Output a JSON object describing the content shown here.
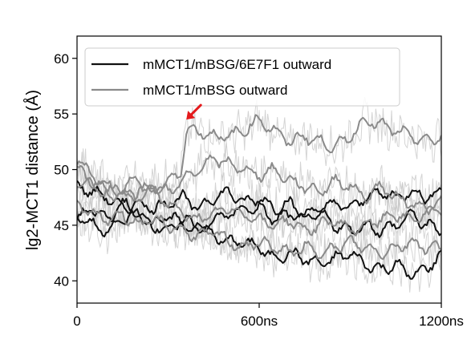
{
  "chart_data": {
    "type": "line",
    "title": "",
    "xlabel": "",
    "ylabel": "lg2-MCT1 distance (Å)",
    "xlim": [
      0,
      1200
    ],
    "ylim": [
      38,
      62
    ],
    "grid": false,
    "legend_position": "top-left",
    "x_ticks": [
      {
        "value": 0,
        "label": "0"
      },
      {
        "value": 600,
        "label": "600ns"
      },
      {
        "value": 1200,
        "label": "1200ns"
      }
    ],
    "y_ticks": [
      {
        "value": 40,
        "label": "40"
      },
      {
        "value": 45,
        "label": "45"
      },
      {
        "value": 50,
        "label": "50"
      },
      {
        "value": 55,
        "label": "55"
      },
      {
        "value": 60,
        "label": "60"
      }
    ],
    "colors": {
      "mMCT1/mBSG/6E7F1 outward": "#111111",
      "mMCT1/mBSG outward": "#8a8a8a",
      "raw_fluctuation": "#c6c6c6",
      "annotation_arrow": "#e41a1c"
    },
    "series": [
      {
        "name": "mMCT1/mBSG/6E7F1 outward",
        "color": "#111111",
        "x": [
          0,
          50,
          100,
          150,
          200,
          250,
          300,
          350,
          400,
          450,
          500,
          550,
          600,
          650,
          700,
          750,
          800,
          850,
          900,
          950,
          1000,
          1050,
          1100,
          1150,
          1200
        ],
        "y": [
          45.5,
          46.5,
          45.5,
          47,
          46,
          45,
          44.5,
          45.5,
          45,
          44,
          43.5,
          43.5,
          43,
          42,
          42.5,
          42,
          41.5,
          42,
          42.5,
          41.5,
          41,
          41.5,
          40.5,
          41,
          42.5
        ]
      },
      {
        "name": "",
        "color": "#111111",
        "x": [
          0,
          50,
          100,
          150,
          200,
          250,
          300,
          350,
          400,
          450,
          500,
          550,
          600,
          650,
          700,
          750,
          800,
          850,
          900,
          950,
          1000,
          1050,
          1100,
          1150,
          1200
        ],
        "y": [
          48.5,
          48,
          47.5,
          46.5,
          47,
          46.5,
          47,
          47.5,
          46.5,
          47.5,
          48,
          47,
          47.5,
          46.5,
          47,
          46,
          46.5,
          47,
          46.5,
          47.5,
          48,
          47.5,
          48,
          47.5,
          48
        ]
      },
      {
        "name": "",
        "color": "#111111",
        "x": [
          0,
          50,
          100,
          150,
          200,
          250,
          300,
          350,
          400,
          450,
          500,
          550,
          600,
          650,
          700,
          750,
          800,
          850,
          900,
          950,
          1000,
          1050,
          1100,
          1150,
          1200
        ],
        "y": [
          46,
          45,
          44.5,
          45.5,
          46,
          45,
          46,
          45,
          44.5,
          45.5,
          46,
          46.5,
          46.5,
          45.5,
          46,
          45.5,
          46,
          45,
          44.5,
          45,
          44.5,
          45,
          46,
          45,
          44.5
        ]
      },
      {
        "name": "mMCT1/mBSG outward",
        "color": "#8a8a8a",
        "x": [
          0,
          50,
          100,
          150,
          200,
          250,
          300,
          340,
          360,
          400,
          450,
          500,
          550,
          600,
          650,
          700,
          750,
          800,
          850,
          900,
          950,
          1000,
          1050,
          1100,
          1150,
          1200
        ],
        "y": [
          51,
          49.5,
          48.5,
          48,
          47.5,
          48,
          49,
          49.5,
          53.5,
          53.5,
          53,
          53,
          53.5,
          54.5,
          53.5,
          52.5,
          53,
          52.5,
          52,
          53,
          54.5,
          54,
          53.5,
          53,
          52.5,
          53
        ]
      },
      {
        "name": "",
        "color": "#8a8a8a",
        "x": [
          0,
          50,
          100,
          150,
          200,
          250,
          300,
          350,
          400,
          450,
          500,
          550,
          600,
          650,
          700,
          750,
          800,
          850,
          900,
          950,
          1000,
          1050,
          1100,
          1150,
          1200
        ],
        "y": [
          50,
          49,
          48,
          47.5,
          48,
          48.5,
          48,
          49,
          50,
          51,
          50.5,
          50,
          49.5,
          50,
          49,
          48.5,
          48,
          49,
          48.5,
          47.5,
          48.5,
          47.5,
          47,
          46.5,
          47
        ]
      },
      {
        "name": "",
        "color": "#8a8a8a",
        "x": [
          0,
          50,
          100,
          150,
          200,
          250,
          300,
          350,
          400,
          450,
          500,
          550,
          600,
          650,
          700,
          750,
          800,
          850,
          900,
          950,
          1000,
          1050,
          1100,
          1150,
          1200
        ],
        "y": [
          47,
          46,
          45.5,
          46,
          45,
          45.5,
          45,
          44.5,
          44,
          44.5,
          43.5,
          43,
          43.5,
          43,
          42.5,
          43,
          42.5,
          43,
          43.5,
          43,
          42.5,
          43,
          43.5,
          43,
          43
        ]
      },
      {
        "name": "",
        "color": "#8a8a8a",
        "x": [
          0,
          50,
          100,
          150,
          200,
          250,
          300,
          350,
          400,
          450,
          500,
          550,
          600,
          650,
          700,
          750,
          800,
          850,
          900,
          950,
          1000,
          1050,
          1100,
          1150,
          1200
        ],
        "y": [
          49,
          48.5,
          48,
          48.5,
          49,
          48,
          47,
          46,
          45.5,
          46,
          46.5,
          46,
          45.5,
          45,
          45.5,
          44.5,
          45,
          45.5,
          44.5,
          45,
          45.5,
          46,
          45.5,
          46,
          46.5
        ]
      }
    ],
    "annotations": [
      {
        "type": "arrow",
        "x": 360,
        "y": 54.5,
        "color": "#e41a1c"
      }
    ],
    "legend": [
      {
        "label": "mMCT1/mBSG/6E7F1 outward",
        "color": "#111111"
      },
      {
        "label": "mMCT1/mBSG outward",
        "color": "#8a8a8a"
      }
    ]
  }
}
